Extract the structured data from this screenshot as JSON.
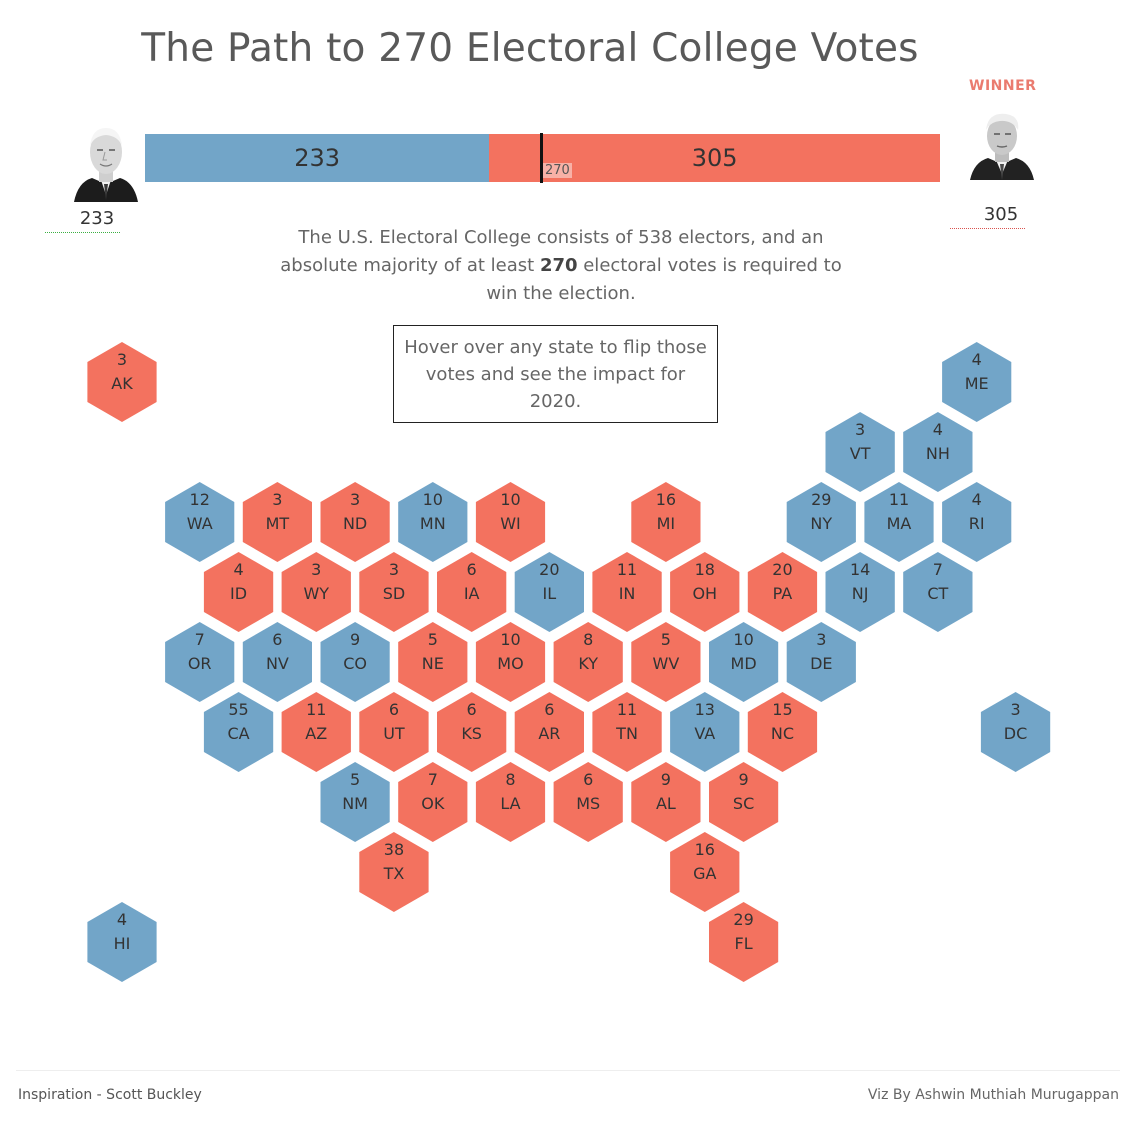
{
  "header": {
    "title": "The Path to 270 Electoral College Votes",
    "winner_label": "WINNER"
  },
  "colors": {
    "dem": "#72a5c8",
    "rep": "#f3725f",
    "winner_label": "#ea7b6f"
  },
  "bar": {
    "dem_value": "233",
    "rep_value": "305",
    "marker_label": "270",
    "max": 538,
    "threshold": 270
  },
  "candidates": {
    "dem": {
      "portrait_icon": "biden-portrait-icon",
      "total": "233"
    },
    "rep": {
      "portrait_icon": "trump-portrait-icon",
      "total": "305"
    }
  },
  "description": {
    "part1": "The U.S. Electoral College consists of 538 electors, and an absolute majority of at least ",
    "bold": "270",
    "part2": " electoral votes is required to win the election."
  },
  "hover_note": "Hover over any state to flip those votes and see the impact for 2020.",
  "chart_data": {
    "type": "hex-map",
    "states": [
      {
        "abbr": "AK",
        "votes": 3,
        "party": "rep",
        "row": 0,
        "col": 0
      },
      {
        "abbr": "ME",
        "votes": 4,
        "party": "dem",
        "row": 0,
        "col": 11
      },
      {
        "abbr": "VT",
        "votes": 3,
        "party": "dem",
        "row": 1,
        "col": 9.5
      },
      {
        "abbr": "NH",
        "votes": 4,
        "party": "dem",
        "row": 1,
        "col": 10.5
      },
      {
        "abbr": "WA",
        "votes": 12,
        "party": "dem",
        "row": 2,
        "col": 1
      },
      {
        "abbr": "MT",
        "votes": 3,
        "party": "rep",
        "row": 2,
        "col": 2
      },
      {
        "abbr": "ND",
        "votes": 3,
        "party": "rep",
        "row": 2,
        "col": 3
      },
      {
        "abbr": "MN",
        "votes": 10,
        "party": "dem",
        "row": 2,
        "col": 4
      },
      {
        "abbr": "WI",
        "votes": 10,
        "party": "rep",
        "row": 2,
        "col": 5
      },
      {
        "abbr": "MI",
        "votes": 16,
        "party": "rep",
        "row": 2,
        "col": 7
      },
      {
        "abbr": "NY",
        "votes": 29,
        "party": "dem",
        "row": 2,
        "col": 9
      },
      {
        "abbr": "MA",
        "votes": 11,
        "party": "dem",
        "row": 2,
        "col": 10
      },
      {
        "abbr": "RI",
        "votes": 4,
        "party": "dem",
        "row": 2,
        "col": 11
      },
      {
        "abbr": "ID",
        "votes": 4,
        "party": "rep",
        "row": 3,
        "col": 1.5
      },
      {
        "abbr": "WY",
        "votes": 3,
        "party": "rep",
        "row": 3,
        "col": 2.5
      },
      {
        "abbr": "SD",
        "votes": 3,
        "party": "rep",
        "row": 3,
        "col": 3.5
      },
      {
        "abbr": "IA",
        "votes": 6,
        "party": "rep",
        "row": 3,
        "col": 4.5
      },
      {
        "abbr": "IL",
        "votes": 20,
        "party": "dem",
        "row": 3,
        "col": 5.5
      },
      {
        "abbr": "IN",
        "votes": 11,
        "party": "rep",
        "row": 3,
        "col": 6.5
      },
      {
        "abbr": "OH",
        "votes": 18,
        "party": "rep",
        "row": 3,
        "col": 7.5
      },
      {
        "abbr": "PA",
        "votes": 20,
        "party": "rep",
        "row": 3,
        "col": 8.5
      },
      {
        "abbr": "NJ",
        "votes": 14,
        "party": "dem",
        "row": 3,
        "col": 9.5
      },
      {
        "abbr": "CT",
        "votes": 7,
        "party": "dem",
        "row": 3,
        "col": 10.5
      },
      {
        "abbr": "OR",
        "votes": 7,
        "party": "dem",
        "row": 4,
        "col": 1
      },
      {
        "abbr": "NV",
        "votes": 6,
        "party": "dem",
        "row": 4,
        "col": 2
      },
      {
        "abbr": "CO",
        "votes": 9,
        "party": "dem",
        "row": 4,
        "col": 3
      },
      {
        "abbr": "NE",
        "votes": 5,
        "party": "rep",
        "row": 4,
        "col": 4
      },
      {
        "abbr": "MO",
        "votes": 10,
        "party": "rep",
        "row": 4,
        "col": 5
      },
      {
        "abbr": "KY",
        "votes": 8,
        "party": "rep",
        "row": 4,
        "col": 6
      },
      {
        "abbr": "WV",
        "votes": 5,
        "party": "rep",
        "row": 4,
        "col": 7
      },
      {
        "abbr": "MD",
        "votes": 10,
        "party": "dem",
        "row": 4,
        "col": 8
      },
      {
        "abbr": "DE",
        "votes": 3,
        "party": "dem",
        "row": 4,
        "col": 9
      },
      {
        "abbr": "CA",
        "votes": 55,
        "party": "dem",
        "row": 5,
        "col": 1.5
      },
      {
        "abbr": "AZ",
        "votes": 11,
        "party": "rep",
        "row": 5,
        "col": 2.5
      },
      {
        "abbr": "UT",
        "votes": 6,
        "party": "rep",
        "row": 5,
        "col": 3.5
      },
      {
        "abbr": "KS",
        "votes": 6,
        "party": "rep",
        "row": 5,
        "col": 4.5
      },
      {
        "abbr": "AR",
        "votes": 6,
        "party": "rep",
        "row": 5,
        "col": 5.5
      },
      {
        "abbr": "TN",
        "votes": 11,
        "party": "rep",
        "row": 5,
        "col": 6.5
      },
      {
        "abbr": "VA",
        "votes": 13,
        "party": "dem",
        "row": 5,
        "col": 7.5
      },
      {
        "abbr": "NC",
        "votes": 15,
        "party": "rep",
        "row": 5,
        "col": 8.5
      },
      {
        "abbr": "DC",
        "votes": 3,
        "party": "dem",
        "row": 5,
        "col": 11.5
      },
      {
        "abbr": "NM",
        "votes": 5,
        "party": "dem",
        "row": 6,
        "col": 3
      },
      {
        "abbr": "OK",
        "votes": 7,
        "party": "rep",
        "row": 6,
        "col": 4
      },
      {
        "abbr": "LA",
        "votes": 8,
        "party": "rep",
        "row": 6,
        "col": 5
      },
      {
        "abbr": "MS",
        "votes": 6,
        "party": "rep",
        "row": 6,
        "col": 6
      },
      {
        "abbr": "AL",
        "votes": 9,
        "party": "rep",
        "row": 6,
        "col": 7
      },
      {
        "abbr": "SC",
        "votes": 9,
        "party": "rep",
        "row": 6,
        "col": 8
      },
      {
        "abbr": "TX",
        "votes": 38,
        "party": "rep",
        "row": 7,
        "col": 3.5
      },
      {
        "abbr": "GA",
        "votes": 16,
        "party": "rep",
        "row": 7,
        "col": 7.5
      },
      {
        "abbr": "HI",
        "votes": 4,
        "party": "dem",
        "row": 8,
        "col": 0
      },
      {
        "abbr": "FL",
        "votes": 29,
        "party": "rep",
        "row": 8,
        "col": 8
      }
    ]
  },
  "footer": {
    "inspiration": "Inspiration -  Scott Buckley",
    "credit": "Viz By Ashwin Muthiah Murugappan"
  }
}
